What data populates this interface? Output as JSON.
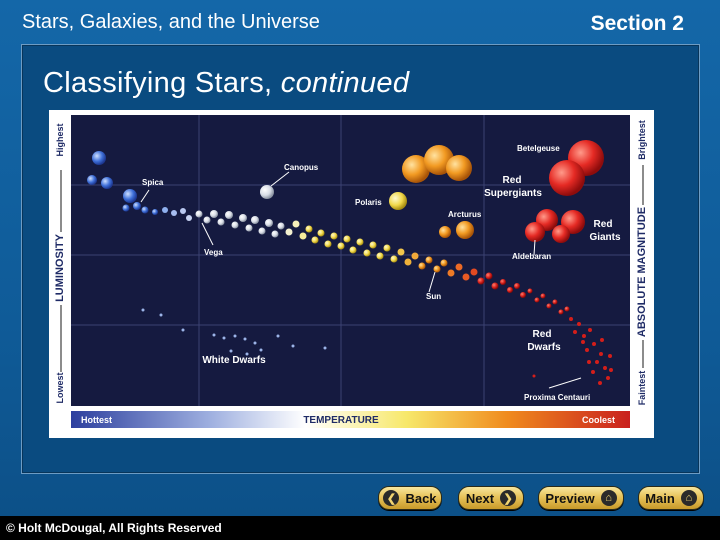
{
  "header": {
    "title": "Stars, Galaxies, and the Universe",
    "section": "Section 2"
  },
  "slide": {
    "title_main": "Classifying Stars, ",
    "title_italic": "continued"
  },
  "diagram": {
    "luminosity_label": "LUMINOSITY",
    "luminosity_high": "Highest",
    "luminosity_low": "Lowest",
    "magnitude_label": "ABSOLUTE MAGNITUDE",
    "magnitude_high": "Brightest",
    "magnitude_low": "Faintest",
    "temperature_label": "TEMPERATURE",
    "temp_hot": "Hottest",
    "temp_cool": "Coolest",
    "stars": {
      "betelgeuse": "Betelgeuse",
      "canopus": "Canopus",
      "spica": "Spica",
      "polaris": "Polaris",
      "arcturus": "Arcturus",
      "vega": "Vega",
      "aldebaran": "Aldebaran",
      "sun": "Sun",
      "proxima": "Proxima Centauri"
    },
    "groups": {
      "red_supergiants_1": "Red",
      "red_supergiants_2": "Supergiants",
      "red_giants_1": "Red",
      "red_giants_2": "Giants",
      "red_dwarfs_1": "Red",
      "red_dwarfs_2": "Dwarfs",
      "white_dwarfs": "White Dwarfs"
    }
  },
  "nav": {
    "back": "Back",
    "next": "Next",
    "preview": "Preview",
    "main": "Main"
  },
  "footer": {
    "copyright": "© Holt McDougal, All Rights Reserved"
  }
}
